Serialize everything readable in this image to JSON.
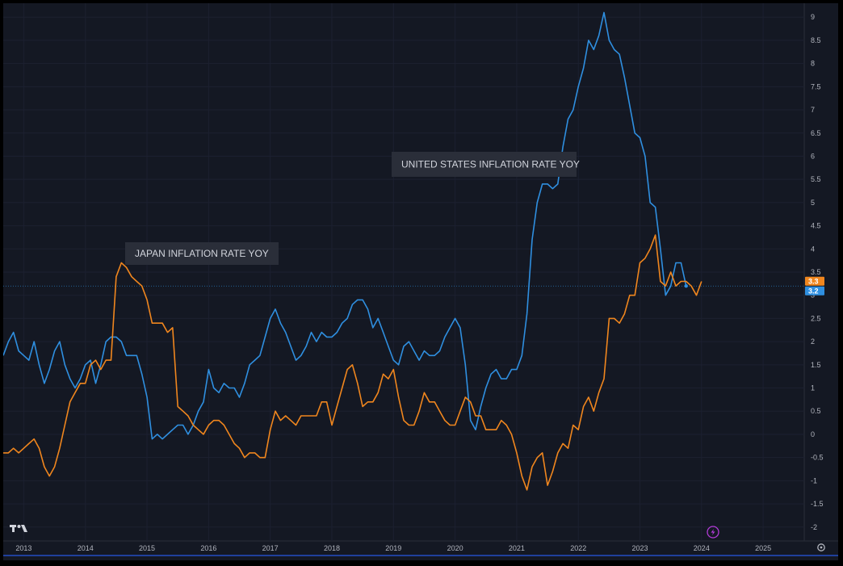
{
  "chart_data": {
    "type": "line",
    "x_start": "2012-09",
    "x_step": "month",
    "xlim": [
      "2012-09",
      "2025-09"
    ],
    "ylim": [
      -2.3,
      9.3
    ],
    "y_ticks": [
      -2,
      -1.5,
      -1,
      -0.5,
      0,
      0.5,
      1,
      1.5,
      2,
      2.5,
      3,
      3.5,
      4,
      4.5,
      5,
      5.5,
      6,
      6.5,
      7,
      7.5,
      8,
      8.5,
      9
    ],
    "y_tick_labels": [
      "-2",
      "-1.5",
      "-1",
      "-0.5",
      "0",
      "0.5",
      "1",
      "1.5",
      "2",
      "2.5",
      "3",
      "3.5",
      "4",
      "4.5",
      "5",
      "5.5",
      "6",
      "6.5",
      "7",
      "7.5",
      "8",
      "8.5",
      "9"
    ],
    "x_tick_labels": [
      "2013",
      "2014",
      "2015",
      "2016",
      "2017",
      "2018",
      "2019",
      "2020",
      "2021",
      "2022",
      "2023",
      "2024",
      "2025"
    ],
    "x_tick_dates": [
      "2013-01",
      "2014-01",
      "2015-01",
      "2016-01",
      "2017-01",
      "2018-01",
      "2019-01",
      "2020-01",
      "2021-01",
      "2022-01",
      "2023-01",
      "2024-01",
      "2025-01"
    ],
    "grid": true,
    "annotations": [
      {
        "text": "UNITED STATES INFLATION RATE YOY",
        "series": "us"
      },
      {
        "text": "JAPAN INFLATION RATE YOY",
        "series": "japan"
      }
    ],
    "last_values": [
      {
        "series": "japan",
        "label": "3.3",
        "value": 3.3
      },
      {
        "series": "us",
        "label": "3.2",
        "value": 3.2
      }
    ],
    "series": [
      {
        "key": "us",
        "color": "#2f8fe0",
        "values": [
          1.7,
          2.0,
          2.2,
          1.8,
          1.7,
          1.6,
          2.0,
          1.5,
          1.1,
          1.4,
          1.8,
          2.0,
          1.5,
          1.2,
          1.0,
          1.2,
          1.5,
          1.6,
          1.1,
          1.5,
          2.0,
          2.1,
          2.1,
          2.0,
          1.7,
          1.7,
          1.7,
          1.3,
          0.8,
          -0.1,
          0.0,
          -0.1,
          0.0,
          0.1,
          0.2,
          0.2,
          0.0,
          0.2,
          0.5,
          0.7,
          1.4,
          1.0,
          0.9,
          1.1,
          1.0,
          1.0,
          0.8,
          1.1,
          1.5,
          1.6,
          1.7,
          2.1,
          2.5,
          2.7,
          2.4,
          2.2,
          1.9,
          1.6,
          1.7,
          1.9,
          2.2,
          2.0,
          2.2,
          2.1,
          2.1,
          2.2,
          2.4,
          2.5,
          2.8,
          2.9,
          2.9,
          2.7,
          2.3,
          2.5,
          2.2,
          1.9,
          1.6,
          1.5,
          1.9,
          2.0,
          1.8,
          1.6,
          1.8,
          1.7,
          1.7,
          1.8,
          2.1,
          2.3,
          2.5,
          2.3,
          1.5,
          0.3,
          0.1,
          0.6,
          1.0,
          1.3,
          1.4,
          1.2,
          1.2,
          1.4,
          1.4,
          1.7,
          2.6,
          4.2,
          5.0,
          5.4,
          5.4,
          5.3,
          5.4,
          6.2,
          6.8,
          7.0,
          7.5,
          7.9,
          8.5,
          8.3,
          8.6,
          9.1,
          8.5,
          8.3,
          8.2,
          7.7,
          7.1,
          6.5,
          6.4,
          6.0,
          5.0,
          4.9,
          4.0,
          3.0,
          3.2,
          3.7,
          3.7,
          3.2
        ],
        "values_start": "2012-09"
      },
      {
        "key": "japan",
        "color": "#f0861e",
        "values": [
          -0.4,
          -0.4,
          -0.3,
          -0.4,
          -0.3,
          -0.2,
          -0.1,
          -0.3,
          -0.7,
          -0.9,
          -0.7,
          -0.3,
          0.2,
          0.7,
          0.9,
          1.1,
          1.1,
          1.5,
          1.6,
          1.4,
          1.6,
          1.6,
          3.4,
          3.7,
          3.6,
          3.4,
          3.3,
          3.2,
          2.9,
          2.4,
          2.4,
          2.4,
          2.2,
          2.3,
          0.6,
          0.5,
          0.4,
          0.2,
          0.1,
          0.0,
          0.2,
          0.3,
          0.3,
          0.2,
          0.0,
          -0.2,
          -0.3,
          -0.5,
          -0.4,
          -0.4,
          -0.5,
          -0.5,
          0.1,
          0.5,
          0.3,
          0.4,
          0.3,
          0.2,
          0.4,
          0.4,
          0.4,
          0.4,
          0.7,
          0.7,
          0.2,
          0.6,
          1.0,
          1.4,
          1.5,
          1.1,
          0.6,
          0.7,
          0.7,
          0.9,
          1.3,
          1.2,
          1.4,
          0.8,
          0.3,
          0.2,
          0.2,
          0.5,
          0.9,
          0.7,
          0.7,
          0.5,
          0.3,
          0.2,
          0.2,
          0.5,
          0.8,
          0.7,
          0.4,
          0.4,
          0.1,
          0.1,
          0.1,
          0.3,
          0.2,
          0.0,
          -0.4,
          -0.9,
          -1.2,
          -0.7,
          -0.5,
          -0.4,
          -1.1,
          -0.8,
          -0.4,
          -0.2,
          -0.3,
          0.2,
          0.1,
          0.6,
          0.8,
          0.5,
          0.9,
          1.2,
          2.5,
          2.5,
          2.4,
          2.6,
          3.0,
          3.0,
          3.7,
          3.8,
          4.0,
          4.3,
          3.3,
          3.2,
          3.5,
          3.2,
          3.3,
          3.3,
          3.2,
          3.0,
          3.3
        ],
        "values_start": "2012-09"
      }
    ]
  },
  "ui": {
    "logo_text": "17"
  }
}
